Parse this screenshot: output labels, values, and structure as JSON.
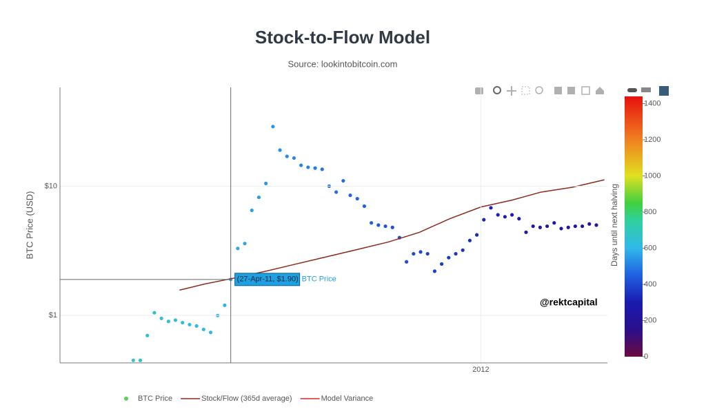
{
  "chart_data": {
    "type": "scatter",
    "title": "Stock-to-Flow Model",
    "subtitle": "Source: lookintobitcoin.com",
    "y_label": "BTC Price (USD)",
    "log_y": true,
    "grid": true,
    "legend": "bottom",
    "xlim": [
      "2010-11-08",
      "2012-05-06"
    ],
    "xticks": [
      {
        "value": "2012-01-01",
        "label": "2012"
      }
    ],
    "ylim": [
      0.43,
      58
    ],
    "yticks": [
      {
        "value": 1,
        "label": "$1"
      },
      {
        "value": 10,
        "label": "$10"
      }
    ],
    "colorbar": {
      "title": "Days until next halving",
      "lim": [
        0,
        1440
      ],
      "ticks": [
        0,
        200,
        400,
        600,
        800,
        1000,
        1200,
        1400
      ],
      "colorscale": [
        [
          0,
          "#6b0a40"
        ],
        [
          150,
          "#2a0f8a"
        ],
        [
          300,
          "#1a1aaf"
        ],
        [
          450,
          "#2060e0"
        ],
        [
          600,
          "#30b8e8"
        ],
        [
          750,
          "#30d0a0"
        ],
        [
          850,
          "#40d040"
        ],
        [
          1000,
          "#e0e020"
        ],
        [
          1200,
          "#f08020"
        ],
        [
          1440,
          "#e81010"
        ]
      ]
    },
    "series": [
      {
        "name": "BTC Price",
        "type": "scatter",
        "color": "#5bd05b",
        "x": [
          "2011-01-20",
          "2011-01-27",
          "2011-02-03",
          "2011-02-10",
          "2011-02-17",
          "2011-02-24",
          "2011-03-03",
          "2011-03-10",
          "2011-03-17",
          "2011-03-24",
          "2011-03-31",
          "2011-04-07",
          "2011-04-14",
          "2011-04-21",
          "2011-04-27",
          "2011-05-04",
          "2011-05-11",
          "2011-05-18",
          "2011-05-25",
          "2011-06-01",
          "2011-06-08",
          "2011-06-15",
          "2011-06-22",
          "2011-06-29",
          "2011-07-06",
          "2011-07-13",
          "2011-07-20",
          "2011-07-27",
          "2011-08-03",
          "2011-08-10",
          "2011-08-17",
          "2011-08-24",
          "2011-08-31",
          "2011-09-07",
          "2011-09-14",
          "2011-09-21",
          "2011-09-28",
          "2011-10-05",
          "2011-10-12",
          "2011-10-19",
          "2011-10-26",
          "2011-11-02",
          "2011-11-09",
          "2011-11-16",
          "2011-11-23",
          "2011-11-30",
          "2011-12-07",
          "2011-12-14",
          "2011-12-21",
          "2011-12-28",
          "2012-01-04",
          "2012-01-11",
          "2012-01-18",
          "2012-01-25",
          "2012-02-01",
          "2012-02-08",
          "2012-02-15",
          "2012-02-22",
          "2012-02-29",
          "2012-03-07",
          "2012-03-14",
          "2012-03-21",
          "2012-03-28",
          "2012-04-04",
          "2012-04-11",
          "2012-04-18",
          "2012-04-25"
        ],
        "values": [
          0.45,
          0.45,
          0.7,
          1.05,
          0.95,
          0.9,
          0.92,
          0.88,
          0.85,
          0.83,
          0.78,
          0.74,
          1.0,
          1.2,
          1.9,
          3.3,
          3.6,
          6.5,
          8.2,
          10.5,
          28.9,
          19,
          17,
          16.5,
          14.5,
          14.0,
          13.8,
          13.5,
          10,
          9,
          11,
          8.5,
          8.0,
          7.0,
          5.2,
          5.0,
          4.9,
          4.8,
          4.0,
          2.6,
          3.0,
          3.1,
          3.0,
          2.2,
          2.5,
          2.8,
          3.0,
          3.2,
          3.8,
          4.2,
          5.5,
          6.8,
          6.0,
          5.8,
          6.0,
          5.6,
          4.4,
          4.9,
          4.8,
          4.9,
          5.2,
          4.7,
          4.8,
          4.9,
          4.9,
          5.1,
          5.0
        ],
        "color_values": [
          678,
          671,
          664,
          657,
          650,
          643,
          636,
          629,
          622,
          615,
          608,
          601,
          594,
          587,
          581,
          574,
          567,
          560,
          553,
          546,
          539,
          532,
          525,
          518,
          511,
          504,
          497,
          490,
          483,
          476,
          469,
          462,
          455,
          448,
          441,
          434,
          427,
          420,
          413,
          406,
          399,
          392,
          385,
          378,
          371,
          364,
          357,
          350,
          343,
          336,
          329,
          322,
          315,
          308,
          301,
          294,
          287,
          280,
          273,
          266,
          259,
          252,
          245,
          238,
          231,
          224,
          217
        ]
      },
      {
        "name": "Stock/Flow (365d average)",
        "type": "line",
        "color": "#8b2a1a",
        "x": [
          "2011-03-07",
          "2011-04-01",
          "2011-05-01",
          "2011-06-01",
          "2011-07-01",
          "2011-08-01",
          "2011-09-01",
          "2011-10-01",
          "2011-11-01",
          "2011-12-01",
          "2012-01-01",
          "2012-02-01",
          "2012-03-01",
          "2012-04-01",
          "2012-05-03"
        ],
        "values": [
          1.57,
          1.75,
          1.95,
          2.2,
          2.5,
          2.85,
          3.25,
          3.7,
          4.4,
          5.6,
          6.9,
          7.8,
          9.0,
          9.8,
          11.2
        ]
      },
      {
        "name": "Model Variance",
        "type": "line",
        "color": "#d62728",
        "x": [],
        "values": []
      }
    ],
    "hover": {
      "label": "(27-Apr-11, $1.90)",
      "point": 14
    },
    "annotation": "@rektcapital"
  }
}
